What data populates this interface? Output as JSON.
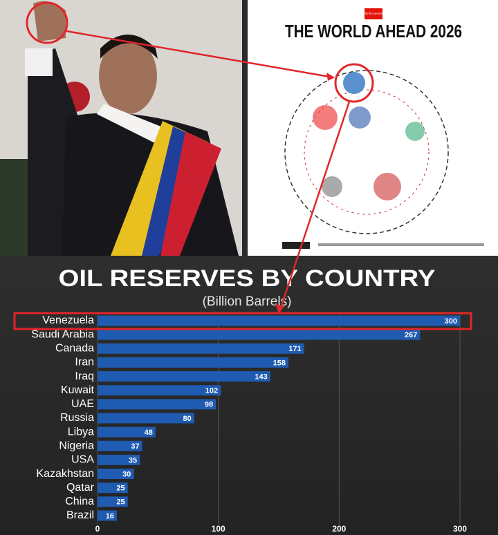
{
  "cover": {
    "brand": "The Economist",
    "title": "THE WORLD AHEAD 2026"
  },
  "chart_data": {
    "type": "hbar",
    "title": "OIL RESERVES BY COUNTRY",
    "subtitle": "(Billion Barrels)",
    "categories": [
      "Venezuela",
      "Saudi Arabia",
      "Canada",
      "Iran",
      "Iraq",
      "Kuwait",
      "UAE",
      "Russia",
      "Libya",
      "Nigeria",
      "USA",
      "Kazakhstan",
      "Qatar",
      "China",
      "Brazil"
    ],
    "values": [
      300,
      267,
      171,
      158,
      143,
      102,
      98,
      80,
      48,
      37,
      35,
      30,
      25,
      25,
      16
    ],
    "color": "#1f5bb0",
    "xlim": [
      0,
      300
    ],
    "xticks": [
      0,
      100,
      200,
      300
    ],
    "grid": true
  }
}
